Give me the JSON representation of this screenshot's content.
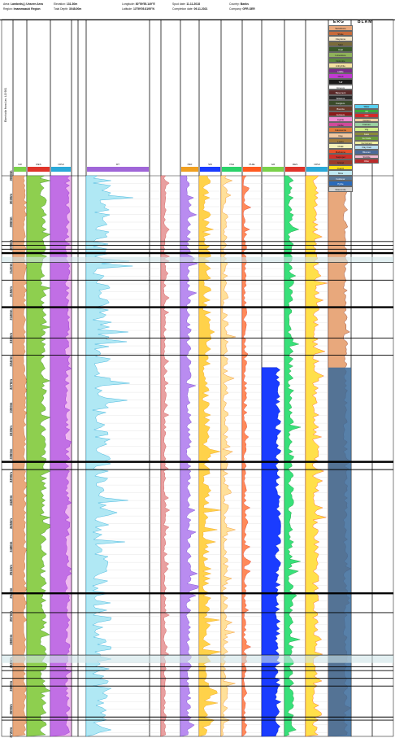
{
  "header": {
    "fields": [
      {
        "label": "Area:",
        "value": "Lambeds(-) Unseen Area"
      },
      {
        "label": "Region:",
        "value": "Imaramazuki Region"
      },
      {
        "label": "Elevation:",
        "value": "131.30m"
      },
      {
        "label": "Total Depth:",
        "value": "3048.00m"
      },
      {
        "label": "Longitude:",
        "value": "80°59'55.149\"E"
      },
      {
        "label": "Latitude:",
        "value": "13°59'05.8195\"N"
      },
      {
        "label": "Spud date:",
        "value": "11.11.2018"
      },
      {
        "label": "Completion date:",
        "value": "09.11.2021"
      },
      {
        "label": "Country:",
        "value": "Banks"
      },
      {
        "label": "Company:",
        "value": "GFR-SER"
      }
    ],
    "side_label": "Ebenholtz from Lec. LO 981",
    "legend_title_1": "ERG",
    "legend_title_2": "BLAM"
  },
  "track_headers": [
    {
      "name": "GR",
      "color": "#7ad14a"
    },
    {
      "name": "RES",
      "color": "#e0342a"
    },
    {
      "name": "NPHI",
      "color": "#2aa9d8"
    },
    {
      "name": "DT",
      "color": "#a066d8"
    },
    {
      "name": "PEF",
      "color": "#f0a020"
    },
    {
      "name": "SW",
      "color": "#1a3cff"
    },
    {
      "name": "VSH",
      "color": "#2ad26a"
    },
    {
      "name": "PHIE",
      "color": "#ff5a20"
    }
  ],
  "lithology_legend": [
    {
      "name": "Sandstone",
      "color": "#e8a87c"
    },
    {
      "name": "Shale",
      "color": "#c96b3a"
    },
    {
      "name": "Claystone",
      "color": "#f5e6c8"
    },
    {
      "name": "Marl",
      "color": "#7b6b3a"
    },
    {
      "name": "Coal",
      "color": "#3a5a2a"
    },
    {
      "name": "Limestone",
      "color": "#8fb25a"
    },
    {
      "name": "Dolomite",
      "color": "#5a8a3a"
    },
    {
      "name": "Anhydrite",
      "color": "#f3e2a0"
    },
    {
      "name": "Halite",
      "color": "#7a2a8a"
    },
    {
      "name": "Chert",
      "color": "#c03ad0"
    },
    {
      "name": "Tuff",
      "color": "#1a1a1a"
    },
    {
      "name": "Igneous",
      "color": "#ffffff"
    },
    {
      "name": "Basement",
      "color": "#5a2a2a"
    },
    {
      "name": "Siltstone",
      "color": "#2a2a2a"
    },
    {
      "name": "Conglom.",
      "color": "#3a4a2a"
    },
    {
      "name": "Breccia",
      "color": "#6a3a2a"
    },
    {
      "name": "Gypsum",
      "color": "#8a1a1a"
    },
    {
      "name": "Lignite",
      "color": "#f08ad0"
    },
    {
      "name": "Oolite",
      "color": "#d04a9a"
    },
    {
      "name": "Calcarenite",
      "color": "#e07a3a"
    },
    {
      "name": "Clay",
      "color": "#f2c8a0"
    },
    {
      "name": "Loess",
      "color": "#a07a3a"
    },
    {
      "name": "Chalk",
      "color": "#f4f0b8"
    },
    {
      "name": "Marlstone",
      "color": "#e8502a"
    },
    {
      "name": "Sapropel",
      "color": "#d0302a"
    },
    {
      "name": "Gravel",
      "color": "#9a3a2a"
    },
    {
      "name": "Quartz",
      "color": "#ffe01a"
    },
    {
      "name": "Mica",
      "color": "#bfe8f0"
    },
    {
      "name": "Feldspar",
      "color": "#5a7a9a"
    },
    {
      "name": "Pyrite",
      "color": "#2a6aba"
    },
    {
      "name": "Glauconite",
      "color": "#d0d0d0"
    }
  ],
  "facies_legend": [
    {
      "name": "Water",
      "color": "#5ad0f0"
    },
    {
      "name": "Oil",
      "color": "#3aaa3a"
    },
    {
      "name": "Gas",
      "color": "#d02a2a"
    },
    {
      "name": "Cement",
      "color": "#f0d0a0"
    },
    {
      "name": "Fracture",
      "color": "#9ad0a0"
    },
    {
      "name": "Vug",
      "color": "#d0f08a"
    },
    {
      "name": "Karst",
      "color": "#8a8a3a"
    },
    {
      "name": "Fe Oxide",
      "color": "#6a9a3a"
    },
    {
      "name": "Ca Cement",
      "color": "#f0f0a0"
    },
    {
      "name": "Clay Coat",
      "color": "#bae0f0"
    },
    {
      "name": "Bitumen",
      "color": "#4a6a9a"
    },
    {
      "name": "Stylolite",
      "color": "#f0b8d0"
    },
    {
      "name": "Other",
      "color": "#ba2a2a"
    }
  ],
  "depth_labels": [
    "3000",
    "3030",
    "3060",
    "3090",
    "3120",
    "3150",
    "3180",
    "3210",
    "3240",
    "3270",
    "3300",
    "3330",
    "3360",
    "3390",
    "3420",
    "3450",
    "3480",
    "3510",
    "3540",
    "3570",
    "3600",
    "3630",
    "3660",
    "3690",
    "3720"
  ],
  "depth_unit": "m",
  "chart_data": {
    "type": "area",
    "ylim": [
      3000,
      3725
    ],
    "yaxis_inverted": true,
    "tracks": [
      {
        "name": "GR",
        "color": "#7ad14a",
        "fill": "#8ecf4f"
      },
      {
        "name": "RES",
        "color": "#e0342a",
        "fill": "#e65a3a"
      },
      {
        "name": "NPHI",
        "color": "#2aa9d8",
        "fill": "#b0e8f4"
      },
      {
        "name": "DT",
        "color": "#a066d8",
        "fill": "#b98cf0"
      },
      {
        "name": "PEF",
        "color": "#f0a020",
        "fill": "#ffd24a"
      },
      {
        "name": "SW",
        "color": "#1a3cff",
        "fill": "#1a3cff"
      },
      {
        "name": "VSH",
        "color": "#2ad26a",
        "fill": "#38e07a"
      },
      {
        "name": "PHIE",
        "color": "#ff5a20",
        "fill": "#ffe04a"
      }
    ],
    "depth_markers": [
      3085,
      3090,
      3095,
      3100,
      3112,
      3135,
      3170,
      3210,
      3232,
      3370,
      3380,
      3540,
      3565,
      3620,
      3635,
      3640,
      3650,
      3660,
      3700,
      3704
    ]
  }
}
